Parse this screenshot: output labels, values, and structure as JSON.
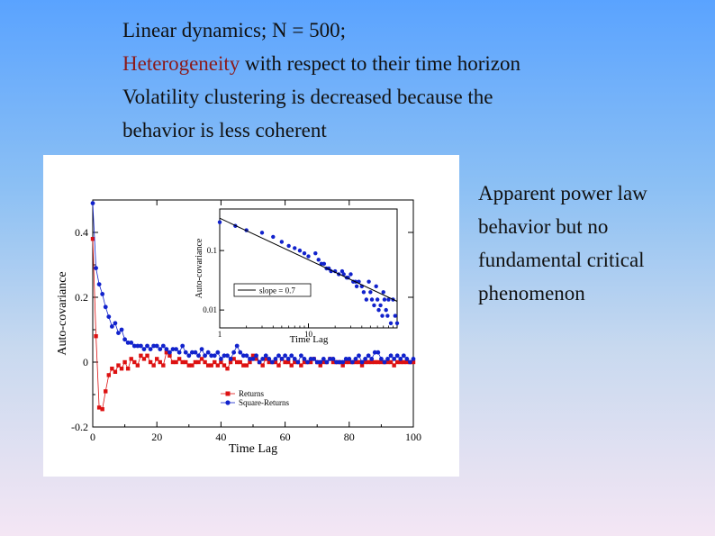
{
  "slide": {
    "line1": "Linear dynamics; N = 500;",
    "line2_highlight": "Heterogeneity",
    "line2_rest": " with respect to their time horizon",
    "line3": "Volatility clustering is decreased because the",
    "line4": "behavior is less coherent",
    "side_line1": "Apparent power law",
    "side_line2": "behavior but no",
    "side_line3": "fundamental critical",
    "side_line4": "phenomenon",
    "highlight_color": "#8b1a1a"
  },
  "chart_data": [
    {
      "type": "line",
      "xlabel": "Time Lag",
      "ylabel": "Auto-covariance",
      "xlim": [
        0,
        100
      ],
      "ylim": [
        -0.2,
        0.5
      ],
      "xticks": [
        0,
        20,
        40,
        60,
        80,
        100
      ],
      "yticks": [
        -0.2,
        0,
        0.2,
        0.4
      ],
      "xtick_labels": [
        "0",
        "20",
        "40",
        "60",
        "80",
        "100"
      ],
      "ytick_labels": [
        "-0.2",
        "0",
        "0.2",
        "0.4"
      ],
      "legend_position": "bottom-center",
      "series": [
        {
          "name": "Returns",
          "color": "#dd1111",
          "marker": "square",
          "x": [
            0,
            1,
            2,
            3,
            4,
            5,
            6,
            7,
            8,
            9,
            10,
            11,
            12,
            13,
            14,
            15,
            16,
            17,
            18,
            19,
            20,
            21,
            22,
            23,
            24,
            25,
            26,
            27,
            28,
            29,
            30,
            31,
            32,
            33,
            34,
            35,
            36,
            37,
            38,
            39,
            40,
            41,
            42,
            43,
            44,
            45,
            46,
            47,
            48,
            49,
            50,
            51,
            52,
            53,
            54,
            55,
            56,
            57,
            58,
            59,
            60,
            61,
            62,
            63,
            64,
            65,
            66,
            67,
            68,
            69,
            70,
            71,
            72,
            73,
            74,
            75,
            76,
            77,
            78,
            79,
            80,
            81,
            82,
            83,
            84,
            85,
            86,
            87,
            88,
            89,
            90,
            91,
            92,
            93,
            94,
            95,
            96,
            97,
            98,
            99,
            100
          ],
          "y": [
            0.38,
            0.08,
            -0.14,
            -0.145,
            -0.09,
            -0.04,
            -0.02,
            -0.03,
            -0.01,
            -0.02,
            0.0,
            -0.02,
            0.01,
            0.0,
            -0.01,
            0.02,
            0.01,
            0.02,
            0.0,
            -0.01,
            0.01,
            0.0,
            -0.01,
            0.03,
            0.02,
            0.0,
            0.0,
            0.01,
            0.0,
            0.0,
            -0.01,
            -0.01,
            0.0,
            0.0,
            0.01,
            0.0,
            -0.01,
            -0.01,
            0.0,
            -0.01,
            0.0,
            -0.01,
            -0.02,
            0.0,
            0.01,
            0.0,
            0.0,
            -0.01,
            -0.01,
            0.0,
            0.02,
            0.01,
            0.0,
            -0.01,
            0.01,
            0.0,
            0.0,
            0.0,
            -0.01,
            0.01,
            0.0,
            0.0,
            -0.01,
            0.0,
            0.0,
            -0.01,
            0.0,
            0.0,
            0.0,
            0.01,
            0.0,
            -0.01,
            0.0,
            0.0,
            0.01,
            0.0,
            0.0,
            0.0,
            -0.01,
            0.0,
            0.0,
            0.0,
            0.0,
            0.0,
            -0.01,
            0.0,
            0.0,
            0.0,
            0.0,
            0.0,
            0.0,
            0.0,
            0.0,
            0.0,
            -0.01,
            0.0,
            0.0,
            0.0,
            0.0,
            0.0,
            0.0
          ]
        },
        {
          "name": "Square-Returns",
          "color": "#1122cc",
          "marker": "circle",
          "x": [
            0,
            1,
            2,
            3,
            4,
            5,
            6,
            7,
            8,
            9,
            10,
            11,
            12,
            13,
            14,
            15,
            16,
            17,
            18,
            19,
            20,
            21,
            22,
            23,
            24,
            25,
            26,
            27,
            28,
            29,
            30,
            31,
            32,
            33,
            34,
            35,
            36,
            37,
            38,
            39,
            40,
            41,
            42,
            43,
            44,
            45,
            46,
            47,
            48,
            49,
            50,
            51,
            52,
            53,
            54,
            55,
            56,
            57,
            58,
            59,
            60,
            61,
            62,
            63,
            64,
            65,
            66,
            67,
            68,
            69,
            70,
            71,
            72,
            73,
            74,
            75,
            76,
            77,
            78,
            79,
            80,
            81,
            82,
            83,
            84,
            85,
            86,
            87,
            88,
            89,
            90,
            91,
            92,
            93,
            94,
            95,
            96,
            97,
            98,
            99,
            100
          ],
          "y": [
            0.49,
            0.29,
            0.24,
            0.21,
            0.17,
            0.14,
            0.11,
            0.12,
            0.09,
            0.1,
            0.07,
            0.06,
            0.06,
            0.05,
            0.05,
            0.05,
            0.04,
            0.05,
            0.04,
            0.05,
            0.05,
            0.04,
            0.05,
            0.04,
            0.03,
            0.04,
            0.04,
            0.03,
            0.05,
            0.03,
            0.02,
            0.03,
            0.03,
            0.02,
            0.04,
            0.02,
            0.03,
            0.02,
            0.02,
            0.03,
            0.01,
            0.02,
            0.02,
            0.01,
            0.03,
            0.05,
            0.03,
            0.02,
            0.02,
            0.01,
            0.01,
            0.02,
            0.0,
            0.01,
            0.02,
            0.01,
            0.0,
            0.01,
            0.02,
            0.01,
            0.02,
            0.01,
            0.02,
            0.01,
            0.0,
            0.02,
            0.01,
            0.0,
            0.01,
            0.01,
            0.0,
            0.0,
            0.01,
            0.0,
            0.01,
            0.01,
            0.0,
            0.0,
            0.0,
            0.01,
            0.01,
            0.0,
            0.01,
            0.02,
            0.0,
            0.01,
            0.02,
            0.01,
            0.03,
            0.03,
            0.01,
            0.0,
            0.01,
            0.02,
            0.01,
            0.02,
            0.01,
            0.02,
            0.01,
            0.0,
            0.01
          ]
        }
      ]
    },
    {
      "type": "scatter",
      "xlabel": "Time Lag",
      "ylabel": "Auto-covariance",
      "xscale": "log",
      "yscale": "log",
      "xlim": [
        1,
        100
      ],
      "ylim": [
        0.005,
        0.5
      ],
      "xtick_labels": [
        "1",
        "10"
      ],
      "ytick_labels": [
        "0.01",
        "0.1"
      ],
      "legend_position": "bottom-left",
      "series": [
        {
          "name": "",
          "color": "#1122cc",
          "marker": "circle",
          "x": [
            1,
            1.5,
            2,
            3,
            4,
            5,
            6,
            7,
            8,
            9,
            10,
            12,
            13,
            14,
            15,
            16,
            17,
            18,
            20,
            22,
            24,
            25,
            27,
            28,
            30,
            32,
            34,
            35,
            37,
            40,
            42,
            45,
            48,
            50,
            52,
            55,
            58,
            60,
            62,
            65,
            68,
            70,
            72,
            75,
            78,
            80,
            85,
            90,
            95,
            100
          ],
          "y": [
            0.3,
            0.26,
            0.22,
            0.2,
            0.17,
            0.14,
            0.12,
            0.11,
            0.1,
            0.09,
            0.08,
            0.09,
            0.07,
            0.06,
            0.06,
            0.05,
            0.05,
            0.045,
            0.045,
            0.04,
            0.045,
            0.04,
            0.035,
            0.035,
            0.04,
            0.03,
            0.03,
            0.025,
            0.03,
            0.025,
            0.02,
            0.015,
            0.03,
            0.02,
            0.015,
            0.012,
            0.025,
            0.015,
            0.01,
            0.012,
            0.008,
            0.02,
            0.015,
            0.01,
            0.008,
            0.015,
            0.006,
            0.015,
            0.008,
            0.006
          ]
        },
        {
          "name": "slope = 0.7",
          "color": "#000000",
          "marker": "none",
          "x": [
            1,
            100
          ],
          "y": [
            0.35,
            0.014
          ]
        }
      ]
    }
  ]
}
